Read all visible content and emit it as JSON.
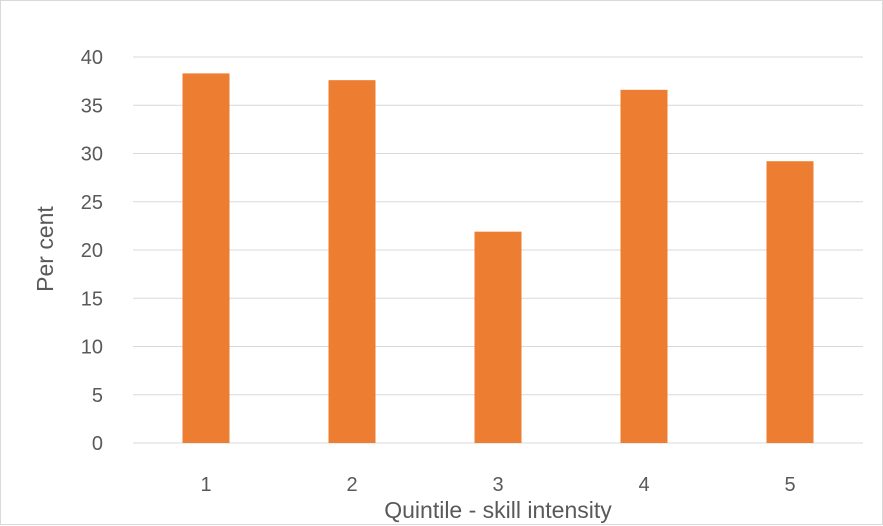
{
  "chart_data": {
    "type": "bar",
    "title": "",
    "xlabel": "Quintile - skill intensity",
    "ylabel": "Per cent",
    "categories": [
      "1",
      "2",
      "3",
      "4",
      "5"
    ],
    "values": [
      38.3,
      37.6,
      21.9,
      36.6,
      29.2
    ],
    "ylim": [
      0,
      40
    ],
    "yticks": [
      0,
      5,
      10,
      15,
      20,
      25,
      30,
      35,
      40
    ],
    "grid": true,
    "legend": "none",
    "bar_color": "#ED7D31",
    "grid_color": "#d9d9d9",
    "text_color": "#595959"
  }
}
